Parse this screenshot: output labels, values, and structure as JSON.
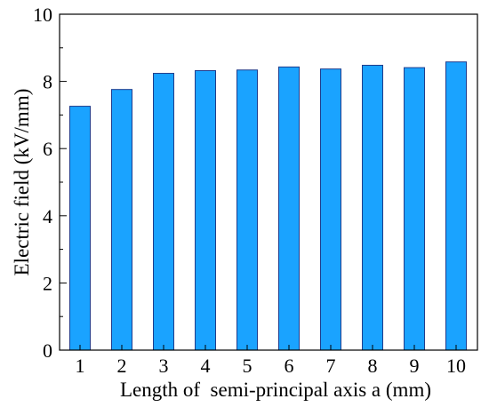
{
  "chart_data": {
    "type": "bar",
    "categories": [
      "1",
      "2",
      "3",
      "4",
      "5",
      "6",
      "7",
      "8",
      "9",
      "10"
    ],
    "values": [
      7.26,
      7.76,
      8.24,
      8.32,
      8.34,
      8.43,
      8.37,
      8.48,
      8.41,
      8.58
    ],
    "title": "",
    "xlabel": "Length of  semi-principal axis a (mm)",
    "ylabel": "Electric field (kV/mm)",
    "ylim": [
      0,
      10
    ],
    "yticks": [
      0,
      2,
      4,
      6,
      8,
      10
    ],
    "grid": false,
    "bar_color": "#1aa3ff",
    "bar_edge_color": "#1f3c8c"
  }
}
